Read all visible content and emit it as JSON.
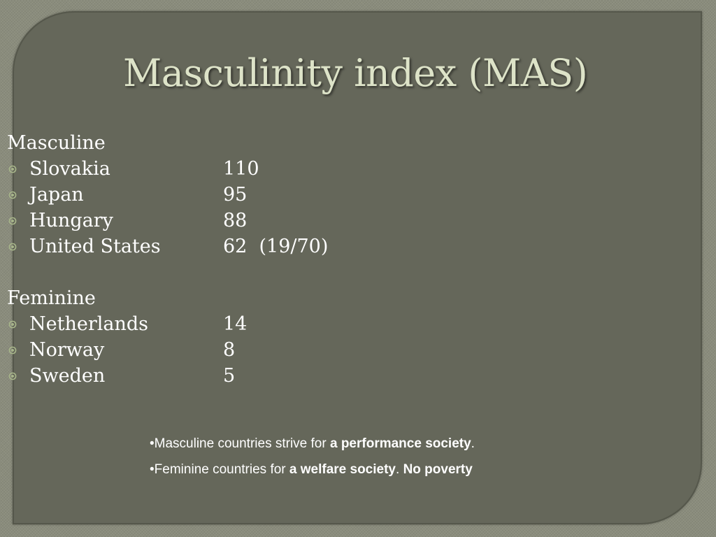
{
  "slide": {
    "title": "Masculinity index (MAS)",
    "masculine": {
      "heading": "Masculine",
      "items": [
        {
          "country": "Slovakia",
          "value": "110"
        },
        {
          "country": "Japan",
          "value": "95"
        },
        {
          "country": "Hungary",
          "value": "88"
        },
        {
          "country": "United States",
          "value": "62  (19/70)"
        }
      ]
    },
    "feminine": {
      "heading": "Feminine",
      "items": [
        {
          "country": "Netherlands",
          "value": "14"
        },
        {
          "country": "Norway",
          "value": "8"
        },
        {
          "country": "Sweden",
          "value": "5"
        }
      ]
    },
    "notes": {
      "line1": {
        "prefix": "•Masculine countries strive for ",
        "bold": "a performance society",
        "suffix": "."
      },
      "line2": {
        "prefix": "•Feminine countries for ",
        "bold1": "a welfare society",
        "mid": ". ",
        "bold2": "No poverty"
      }
    },
    "colors": {
      "background": "#8a8c7c",
      "panel": "#65675a",
      "title": "#dde3c8",
      "text": "#ffffff",
      "bullet": "#a7b58a"
    },
    "icons": {
      "bullet": "circled-dot-bullet-icon"
    }
  }
}
